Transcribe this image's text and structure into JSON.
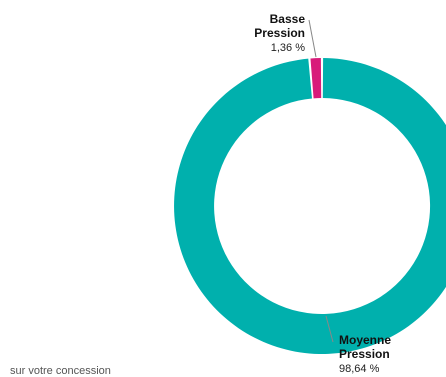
{
  "chart_data": {
    "type": "pie",
    "variant": "donut",
    "start": "top",
    "direction": "counterclockwise",
    "slices": [
      {
        "name": "Basse Pression",
        "name_lines": [
          "Basse",
          "Pression"
        ],
        "value": 1.36,
        "value_label": "1,36 %",
        "color": "#d81b7a"
      },
      {
        "name": "Moyenne Pression",
        "name_lines": [
          "Moyenne",
          "Pression"
        ],
        "value": 98.64,
        "value_label": "98,64 %",
        "color": "#00b0ad"
      }
    ]
  },
  "caption": "sur votre concession"
}
